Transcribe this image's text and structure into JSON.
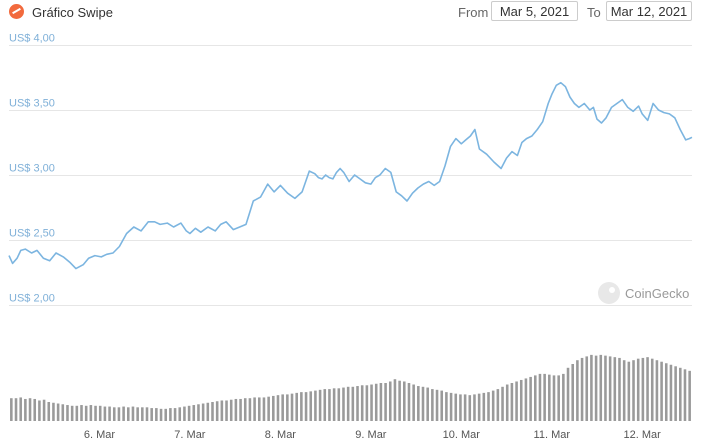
{
  "header": {
    "title": "Gráfico Swipe",
    "from_label": "From",
    "from_value": "Mar 5, 2021",
    "to_label": "To",
    "to_value": "Mar 12, 2021"
  },
  "watermark": "CoinGecko",
  "colors": {
    "line": "#7cb5e0",
    "volume": "#9a9a9a",
    "grid": "#e6e6e6",
    "logo": "#f26a3d"
  },
  "chart_data": {
    "type": "line",
    "title": "Gráfico Swipe",
    "y_ticks": [
      "US$ 2,00",
      "US$ 2,50",
      "US$ 3,00",
      "US$ 3,50",
      "US$ 4,00"
    ],
    "ylim": [
      2.0,
      4.0
    ],
    "x_ticks": [
      "6. Mar",
      "7. Mar",
      "8. Mar",
      "9. Mar",
      "10. Mar",
      "11. Mar",
      "12. Mar"
    ],
    "xlim": [
      5.0,
      12.55
    ],
    "x_unit": "days of March 2021",
    "grid": true,
    "series": [
      {
        "values_x": [
          5.0,
          5.04,
          5.09,
          5.13,
          5.18,
          5.25,
          5.31,
          5.38,
          5.45,
          5.52,
          5.6,
          5.67,
          5.74,
          5.82,
          5.88,
          5.95,
          6.02,
          6.08,
          6.15,
          6.22,
          6.3,
          6.38,
          6.46,
          6.54,
          6.61,
          6.67,
          6.75,
          6.82,
          6.9,
          6.96,
          7.0,
          7.06,
          7.12,
          7.2,
          7.28,
          7.34,
          7.4,
          7.48,
          7.55,
          7.62,
          7.7,
          7.78,
          7.86,
          7.93,
          8.0,
          8.08,
          8.16,
          8.24,
          8.32,
          8.38,
          8.42,
          8.46,
          8.5,
          8.54,
          8.58,
          8.62,
          8.66,
          8.7,
          8.76,
          8.82,
          8.88,
          8.94,
          9.0,
          9.05,
          9.1,
          9.16,
          9.22,
          9.28,
          9.34,
          9.4,
          9.46,
          9.52,
          9.58,
          9.64,
          9.7,
          9.76,
          9.82,
          9.88,
          9.94,
          10.0,
          10.05,
          10.1,
          10.15,
          10.2,
          10.28,
          10.36,
          10.44,
          10.5,
          10.56,
          10.62,
          10.67,
          10.72,
          10.78,
          10.84,
          10.9,
          10.96,
          11.0,
          11.05,
          11.1,
          11.15,
          11.2,
          11.25,
          11.3,
          11.36,
          11.42,
          11.46,
          11.5,
          11.55,
          11.6,
          11.66,
          11.72,
          11.78,
          11.84,
          11.9,
          11.96,
          12.0,
          12.06,
          12.12,
          12.18,
          12.24,
          12.3,
          12.36,
          12.42,
          12.48,
          12.52,
          12.55
        ],
        "values_y": [
          2.38,
          2.32,
          2.36,
          2.42,
          2.43,
          2.4,
          2.42,
          2.36,
          2.34,
          2.4,
          2.37,
          2.33,
          2.28,
          2.31,
          2.36,
          2.38,
          2.37,
          2.39,
          2.4,
          2.45,
          2.55,
          2.6,
          2.57,
          2.64,
          2.64,
          2.62,
          2.63,
          2.6,
          2.63,
          2.57,
          2.55,
          2.59,
          2.56,
          2.6,
          2.57,
          2.62,
          2.64,
          2.58,
          2.6,
          2.62,
          2.8,
          2.83,
          2.93,
          2.87,
          2.92,
          2.86,
          2.82,
          2.87,
          3.03,
          3.01,
          2.98,
          2.97,
          3.0,
          2.98,
          2.97,
          3.02,
          3.05,
          3.02,
          2.95,
          3.0,
          2.97,
          2.94,
          2.93,
          2.98,
          3.0,
          3.05,
          3.02,
          2.87,
          2.84,
          2.8,
          2.86,
          2.9,
          2.93,
          2.95,
          2.92,
          2.95,
          3.07,
          3.22,
          3.28,
          3.24,
          3.27,
          3.3,
          3.35,
          3.2,
          3.16,
          3.1,
          3.05,
          3.13,
          3.18,
          3.15,
          3.25,
          3.28,
          3.3,
          3.35,
          3.41,
          3.55,
          3.62,
          3.69,
          3.71,
          3.68,
          3.6,
          3.55,
          3.52,
          3.55,
          3.5,
          3.52,
          3.43,
          3.4,
          3.44,
          3.52,
          3.55,
          3.58,
          3.52,
          3.49,
          3.53,
          3.47,
          3.42,
          3.55,
          3.5,
          3.48,
          3.47,
          3.44,
          3.35,
          3.27,
          3.28,
          3.29
        ]
      }
    ],
    "volume": {
      "unit": "relative (0-1)",
      "values": [
        0.3,
        0.3,
        0.31,
        0.29,
        0.3,
        0.29,
        0.27,
        0.28,
        0.25,
        0.24,
        0.23,
        0.22,
        0.21,
        0.2,
        0.2,
        0.21,
        0.2,
        0.21,
        0.2,
        0.2,
        0.19,
        0.19,
        0.18,
        0.18,
        0.19,
        0.18,
        0.19,
        0.18,
        0.18,
        0.18,
        0.17,
        0.17,
        0.16,
        0.16,
        0.17,
        0.17,
        0.18,
        0.19,
        0.2,
        0.21,
        0.22,
        0.23,
        0.24,
        0.25,
        0.26,
        0.27,
        0.27,
        0.28,
        0.29,
        0.29,
        0.3,
        0.3,
        0.31,
        0.31,
        0.31,
        0.32,
        0.33,
        0.34,
        0.35,
        0.35,
        0.36,
        0.37,
        0.38,
        0.38,
        0.39,
        0.4,
        0.41,
        0.42,
        0.42,
        0.43,
        0.43,
        0.44,
        0.45,
        0.45,
        0.46,
        0.47,
        0.47,
        0.48,
        0.49,
        0.5,
        0.5,
        0.52,
        0.55,
        0.53,
        0.52,
        0.5,
        0.48,
        0.46,
        0.45,
        0.44,
        0.42,
        0.41,
        0.4,
        0.38,
        0.37,
        0.36,
        0.35,
        0.35,
        0.34,
        0.35,
        0.36,
        0.37,
        0.38,
        0.4,
        0.42,
        0.45,
        0.48,
        0.5,
        0.52,
        0.54,
        0.56,
        0.58,
        0.6,
        0.62,
        0.62,
        0.61,
        0.6,
        0.6,
        0.62,
        0.7,
        0.75,
        0.8,
        0.83,
        0.85,
        0.87,
        0.86,
        0.87,
        0.86,
        0.85,
        0.84,
        0.83,
        0.8,
        0.78,
        0.8,
        0.82,
        0.83,
        0.84,
        0.82,
        0.8,
        0.78,
        0.76,
        0.74,
        0.72,
        0.7,
        0.68,
        0.66
      ]
    }
  }
}
